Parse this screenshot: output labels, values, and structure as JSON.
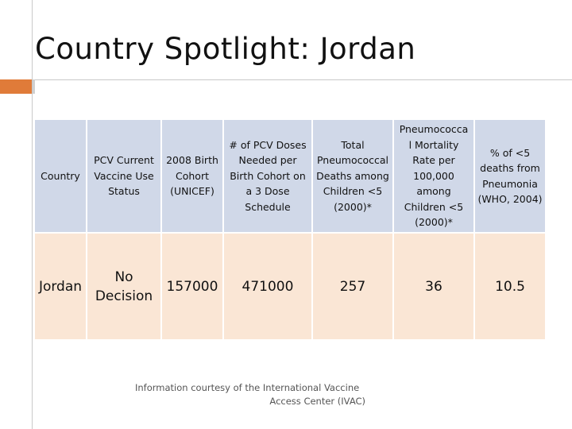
{
  "slide": {
    "title": "Country Spotlight: Jordan"
  },
  "table": {
    "headers": [
      [
        "Country"
      ],
      [
        "PCV Current",
        "Vaccine Use",
        "Status"
      ],
      [
        "2008 Birth",
        "Cohort",
        "(UNICEF)"
      ],
      [
        "# of PCV Doses",
        "Needed per",
        "Birth Cohort on",
        "a 3 Dose",
        "Schedule"
      ],
      [
        "Total",
        "Pneumococcal",
        "Deaths among",
        "Children <5",
        "(2000)*"
      ],
      [
        "Pneumococca",
        "l Mortality",
        "Rate per",
        "100,000",
        "among",
        "Children <5",
        "(2000)*"
      ],
      [
        "% of <5",
        "deaths from",
        "Pneumonia",
        "(WHO, 2004)"
      ]
    ],
    "row": [
      [
        "Jordan"
      ],
      [
        "No",
        "Decision"
      ],
      [
        "157000"
      ],
      [
        "471000"
      ],
      [
        "257"
      ],
      [
        "36"
      ],
      [
        "10.5"
      ]
    ]
  },
  "credit": {
    "line1": "Information courtesy of the International Vaccine",
    "line2": "Access Center (IVAC)"
  }
}
